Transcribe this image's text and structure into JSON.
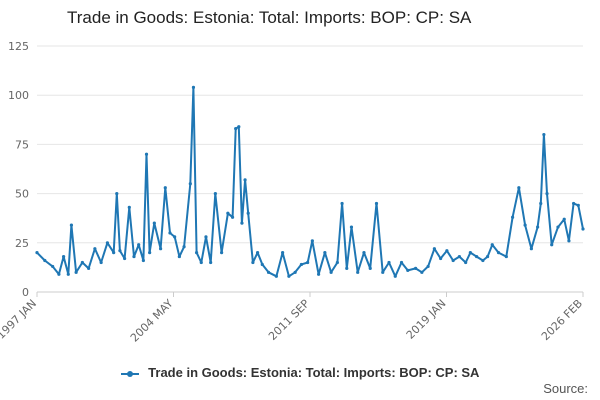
{
  "chart_data": {
    "type": "line",
    "title": "Trade in Goods: Estonia: Total: Imports: BOP: CP: SA",
    "xlabel": "",
    "ylabel": "",
    "x_tick_labels": [
      "1997 JAN",
      "2004 MAY",
      "2011 SEP",
      "2019 JAN",
      "2026 FEB"
    ],
    "x_range": [
      "1997-01",
      "2026-02"
    ],
    "ylim": [
      0,
      125
    ],
    "y_ticks": [
      0,
      25,
      50,
      75,
      100,
      125
    ],
    "grid": true,
    "legend_position": "bottom",
    "series": [
      {
        "name": "Trade in Goods: Estonia: Total: Imports: BOP: CP: SA",
        "color": "#1f77b4",
        "points": [
          [
            "1997-01",
            20
          ],
          [
            "1997-06",
            16
          ],
          [
            "1997-11",
            13
          ],
          [
            "1998-03",
            9
          ],
          [
            "1998-06",
            18
          ],
          [
            "1998-09",
            9
          ],
          [
            "1998-11",
            34
          ],
          [
            "1999-02",
            10
          ],
          [
            "1999-06",
            15
          ],
          [
            "1999-10",
            12
          ],
          [
            "2000-02",
            22
          ],
          [
            "2000-06",
            15
          ],
          [
            "2000-10",
            25
          ],
          [
            "2001-02",
            20
          ],
          [
            "2001-04",
            50
          ],
          [
            "2001-06",
            21
          ],
          [
            "2001-09",
            17
          ],
          [
            "2001-12",
            43
          ],
          [
            "2002-03",
            18
          ],
          [
            "2002-06",
            24
          ],
          [
            "2002-09",
            16
          ],
          [
            "2002-11",
            70
          ],
          [
            "2003-01",
            20
          ],
          [
            "2003-04",
            35
          ],
          [
            "2003-08",
            22
          ],
          [
            "2003-11",
            53
          ],
          [
            "2004-02",
            30
          ],
          [
            "2004-05",
            28
          ],
          [
            "2004-08",
            18
          ],
          [
            "2004-11",
            23
          ],
          [
            "2005-03",
            55
          ],
          [
            "2005-05",
            104
          ],
          [
            "2005-07",
            20
          ],
          [
            "2005-10",
            15
          ],
          [
            "2006-01",
            28
          ],
          [
            "2006-04",
            15
          ],
          [
            "2006-07",
            50
          ],
          [
            "2006-11",
            20
          ],
          [
            "2007-03",
            40
          ],
          [
            "2007-06",
            38
          ],
          [
            "2007-08",
            83
          ],
          [
            "2007-10",
            84
          ],
          [
            "2007-12",
            35
          ],
          [
            "2008-02",
            57
          ],
          [
            "2008-04",
            40
          ],
          [
            "2008-07",
            15
          ],
          [
            "2008-10",
            20
          ],
          [
            "2009-01",
            14
          ],
          [
            "2009-05",
            10
          ],
          [
            "2009-10",
            8
          ],
          [
            "2010-02",
            20
          ],
          [
            "2010-06",
            8
          ],
          [
            "2010-10",
            10
          ],
          [
            "2011-02",
            14
          ],
          [
            "2011-06",
            15
          ],
          [
            "2011-09",
            26
          ],
          [
            "2012-01",
            9
          ],
          [
            "2012-05",
            20
          ],
          [
            "2012-09",
            10
          ],
          [
            "2013-01",
            15
          ],
          [
            "2013-04",
            45
          ],
          [
            "2013-07",
            12
          ],
          [
            "2013-10",
            33
          ],
          [
            "2014-02",
            10
          ],
          [
            "2014-06",
            20
          ],
          [
            "2014-10",
            12
          ],
          [
            "2015-02",
            45
          ],
          [
            "2015-06",
            10
          ],
          [
            "2015-10",
            15
          ],
          [
            "2016-02",
            8
          ],
          [
            "2016-06",
            15
          ],
          [
            "2016-10",
            11
          ],
          [
            "2017-03",
            12
          ],
          [
            "2017-07",
            10
          ],
          [
            "2017-11",
            13
          ],
          [
            "2018-03",
            22
          ],
          [
            "2018-07",
            17
          ],
          [
            "2018-11",
            21
          ],
          [
            "2019-03",
            16
          ],
          [
            "2019-07",
            18
          ],
          [
            "2019-11",
            15
          ],
          [
            "2020-02",
            20
          ],
          [
            "2020-06",
            18
          ],
          [
            "2020-10",
            16
          ],
          [
            "2021-01",
            18
          ],
          [
            "2021-04",
            24
          ],
          [
            "2021-08",
            20
          ],
          [
            "2022-01",
            18
          ],
          [
            "2022-05",
            38
          ],
          [
            "2022-09",
            53
          ],
          [
            "2023-01",
            34
          ],
          [
            "2023-05",
            22
          ],
          [
            "2023-09",
            33
          ],
          [
            "2023-11",
            45
          ],
          [
            "2024-01",
            80
          ],
          [
            "2024-03",
            50
          ],
          [
            "2024-06",
            24
          ],
          [
            "2024-10",
            33
          ],
          [
            "2025-02",
            37
          ],
          [
            "2025-05",
            26
          ],
          [
            "2025-08",
            45
          ],
          [
            "2025-11",
            44
          ],
          [
            "2026-02",
            32
          ]
        ]
      }
    ]
  },
  "legend": {
    "label": "Trade in Goods: Estonia: Total: Imports: BOP: CP: SA"
  },
  "footer": {
    "source_label": "Source:"
  }
}
